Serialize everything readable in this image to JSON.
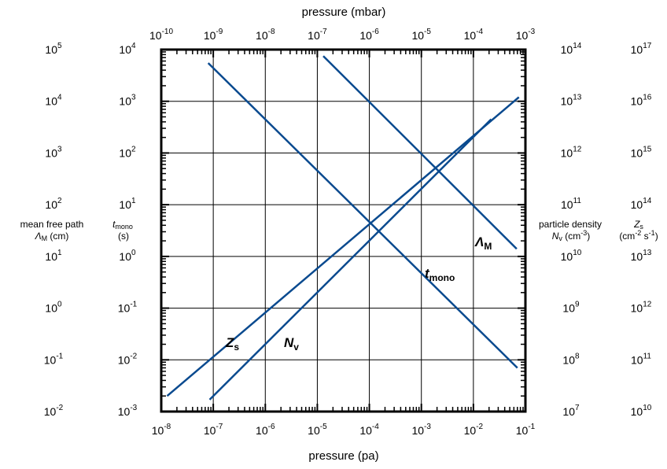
{
  "chart_data": {
    "type": "line",
    "title": "",
    "x_axis_bottom": {
      "label": "pressure (pa)",
      "scale": "log",
      "range": [
        1e-08,
        0.1
      ],
      "ticks": [
        {
          "base": "10",
          "exp": "-8"
        },
        {
          "base": "10",
          "exp": "-7"
        },
        {
          "base": "10",
          "exp": "-6"
        },
        {
          "base": "10",
          "exp": "-5"
        },
        {
          "base": "10",
          "exp": "-4"
        },
        {
          "base": "10",
          "exp": "-3"
        },
        {
          "base": "10",
          "exp": "-2"
        },
        {
          "base": "10",
          "exp": "-1"
        }
      ]
    },
    "x_axis_top": {
      "label": "pressure (mbar)",
      "scale": "log",
      "range": [
        1e-10,
        0.001
      ],
      "ticks": [
        {
          "base": "10",
          "exp": "-10"
        },
        {
          "base": "10",
          "exp": "-9"
        },
        {
          "base": "10",
          "exp": "-8"
        },
        {
          "base": "10",
          "exp": "-7"
        },
        {
          "base": "10",
          "exp": "-6"
        },
        {
          "base": "10",
          "exp": "-5"
        },
        {
          "base": "10",
          "exp": "-4"
        },
        {
          "base": "10",
          "exp": "-3"
        }
      ]
    },
    "y_axes": {
      "mean_free_path": {
        "label_line1": "mean free path",
        "label_sym": "Λ",
        "label_sub": "M",
        "label_unit": " (cm)",
        "scale": "log",
        "range": [
          0.01,
          100000
        ],
        "ticks": [
          {
            "base": "10",
            "exp": "-2"
          },
          {
            "base": "10",
            "exp": "-1"
          },
          {
            "base": "10",
            "exp": "0"
          },
          {
            "base": "10",
            "exp": "1"
          },
          {
            "base": "10",
            "exp": "2"
          },
          {
            "base": "10",
            "exp": "3"
          },
          {
            "base": "10",
            "exp": "4"
          },
          {
            "base": "10",
            "exp": "5"
          }
        ]
      },
      "t_mono": {
        "label_sym": "t",
        "label_sub": "mono",
        "label_unit": "(s)",
        "scale": "log",
        "range": [
          0.001,
          10000
        ],
        "ticks": [
          {
            "base": "10",
            "exp": "-3"
          },
          {
            "base": "10",
            "exp": "-2"
          },
          {
            "base": "10",
            "exp": "-1"
          },
          {
            "base": "10",
            "exp": "0"
          },
          {
            "base": "10",
            "exp": "1"
          },
          {
            "base": "10",
            "exp": "2"
          },
          {
            "base": "10",
            "exp": "3"
          },
          {
            "base": "10",
            "exp": "4"
          }
        ]
      },
      "particle_density": {
        "label_line1": "particle density",
        "label_sym": "N",
        "label_sub": "v",
        "label_unit": " (cm",
        "label_unit_exp": "-3",
        "label_unit_close": ")",
        "scale": "log",
        "range": [
          10000000.0,
          100000000000000.0
        ],
        "ticks": [
          {
            "base": "10",
            "exp": "7"
          },
          {
            "base": "10",
            "exp": "8"
          },
          {
            "base": "10",
            "exp": "9"
          },
          {
            "base": "10",
            "exp": "10"
          },
          {
            "base": "10",
            "exp": "11"
          },
          {
            "base": "10",
            "exp": "12"
          },
          {
            "base": "10",
            "exp": "13"
          },
          {
            "base": "10",
            "exp": "14"
          }
        ]
      },
      "zs": {
        "label_sym": "Z",
        "label_sub": "s",
        "label_unit": "(cm",
        "label_unit_exp1": "-2",
        "label_unit_mid": " s",
        "label_unit_exp2": "-1",
        "label_unit_close": ")",
        "scale": "log",
        "range": [
          10000000000.0,
          1e+17
        ],
        "ticks": [
          {
            "base": "10",
            "exp": "10"
          },
          {
            "base": "10",
            "exp": "11"
          },
          {
            "base": "10",
            "exp": "12"
          },
          {
            "base": "10",
            "exp": "13"
          },
          {
            "base": "10",
            "exp": "14"
          },
          {
            "base": "10",
            "exp": "15"
          },
          {
            "base": "10",
            "exp": "16"
          },
          {
            "base": "10",
            "exp": "17"
          }
        ]
      }
    },
    "series": [
      {
        "name": "Zs",
        "label_main": "Z",
        "label_sub": "s",
        "axis": "zs",
        "points": [
          [
            1.3e-08,
            20000000000.0
          ],
          [
            0.075,
            1.2e+16
          ]
        ]
      },
      {
        "name": "Nv",
        "label_main": "N",
        "label_sub": "v",
        "axis": "particle_density",
        "points": [
          [
            8.5e-08,
            17000000.0
          ],
          [
            0.022,
            4500000000000.0
          ]
        ]
      },
      {
        "name": "tmono",
        "label_main": "t",
        "label_sub": "mono",
        "axis": "t_mono",
        "points": [
          [
            8e-08,
            5500
          ],
          [
            0.07,
            0.007
          ]
        ]
      },
      {
        "name": "ΛM",
        "label_main": "Λ",
        "label_sub": "M",
        "axis": "mean_free_path",
        "points": [
          [
            1.3e-05,
            75000
          ],
          [
            0.068,
            14
          ]
        ]
      }
    ],
    "curve_color": "#0a4a8f",
    "grid": true
  }
}
